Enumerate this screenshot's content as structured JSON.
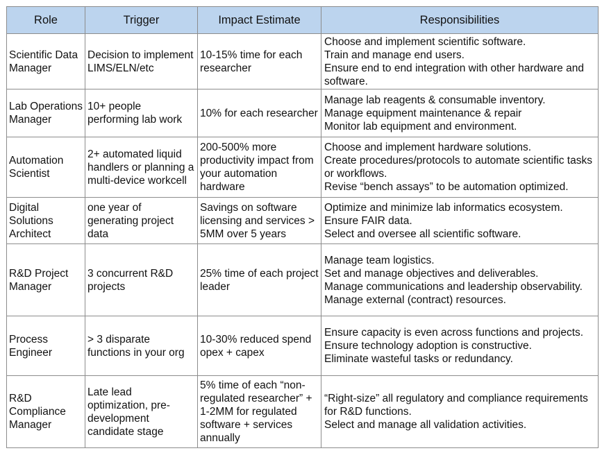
{
  "headers": [
    "Role",
    "Trigger",
    "Impact Estimate",
    "Responsibilities"
  ],
  "rows": [
    {
      "role": "Scientific Data Manager",
      "trigger": "Decision to implement LIMS/ELN/etc",
      "impact": "10-15% time for each researcher",
      "responsibilities": [
        "Choose and implement scientific software.",
        "Train and manage end users.",
        "Ensure end to end integration with other hardware and software."
      ]
    },
    {
      "role": "Lab Operations Manager",
      "trigger": "10+ people performing lab work",
      "impact": "10% for each researcher",
      "responsibilities": [
        "Manage lab reagents & consumable inventory.",
        "Manage equipment maintenance & repair",
        "Monitor lab equipment and environment."
      ]
    },
    {
      "role": "Automation Scientist",
      "trigger": "2+ automated liquid handlers or planning a multi-device workcell",
      "impact": "200-500% more productivity impact from your automation hardware",
      "responsibilities": [
        "Choose and implement hardware solutions.",
        "Create procedures/protocols to automate scientific tasks or workflows.",
        "Revise “bench assays” to be automation optimized."
      ]
    },
    {
      "role": "Digital Solutions Architect",
      "trigger": "one year of generating project data",
      "impact": "Savings on software licensing and services > 5MM over 5 years",
      "responsibilities": [
        "Optimize and minimize lab informatics ecosystem.",
        "Ensure FAIR data.",
        "Select and oversee all scientific software."
      ]
    },
    {
      "role": "R&D Project Manager",
      "trigger": "3 concurrent R&D projects",
      "impact": "25% time of each project leader",
      "responsibilities": [
        "Manage team logistics.",
        "Set and manage objectives and deliverables.",
        "Manage communications and leadership observability.",
        "Manage external (contract) resources."
      ]
    },
    {
      "role": "Process Engineer",
      "trigger": "> 3 disparate functions in your org",
      "impact": "10-30% reduced spend opex + capex",
      "responsibilities": [
        "Ensure capacity is even across functions and projects.",
        "Ensure technology adoption is constructive.",
        "Eliminate wasteful tasks or redundancy."
      ]
    },
    {
      "role": "R&D Compliance Manager",
      "trigger": "Late lead optimization, pre-development candidate stage",
      "impact": "5% time of each “non-regulated researcher” + 1-2MM for regulated software + services annually",
      "responsibilities": [
        "“Right-size” all regulatory and compliance requirements for R&D functions.",
        "Select and manage all validation activities."
      ]
    }
  ]
}
